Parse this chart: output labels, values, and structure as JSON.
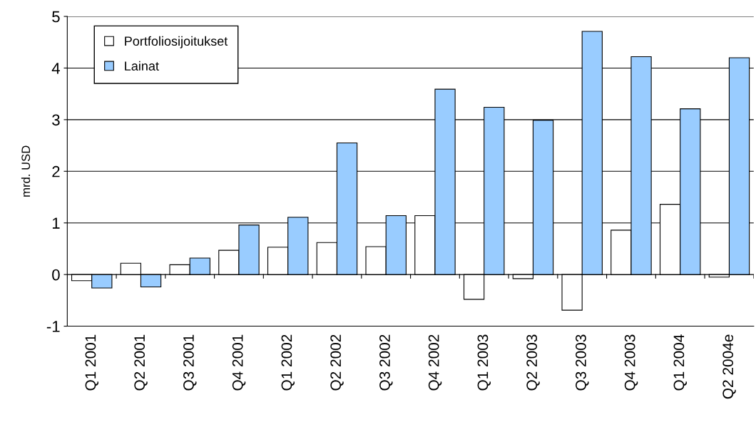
{
  "chart_data": {
    "type": "bar",
    "ylabel": "mrd. USD",
    "categories": [
      "Q1 2001",
      "Q2 2001",
      "Q3 2001",
      "Q4 2001",
      "Q1 2002",
      "Q2 2002",
      "Q3 2002",
      "Q4 2002",
      "Q1 2003",
      "Q2 2003",
      "Q3 2003",
      "Q4 2003",
      "Q1 2004",
      "Q2 2004e"
    ],
    "series": [
      {
        "name": "Portfoliosijoitukset",
        "color": "#ffffff",
        "values": [
          -0.12,
          0.22,
          0.19,
          0.47,
          0.53,
          0.62,
          0.54,
          1.14,
          -0.48,
          -0.08,
          -0.69,
          0.86,
          1.36,
          -0.05
        ]
      },
      {
        "name": "Lainat",
        "color": "#99ccff",
        "values": [
          -0.26,
          -0.24,
          0.32,
          0.96,
          1.11,
          2.55,
          1.14,
          3.59,
          3.24,
          2.99,
          4.71,
          4.22,
          3.21,
          4.2
        ]
      }
    ],
    "ylim": [
      -1,
      5
    ],
    "yticks": [
      -1,
      0,
      1,
      2,
      3,
      4,
      5
    ],
    "grid": "y",
    "legend": "top left"
  }
}
